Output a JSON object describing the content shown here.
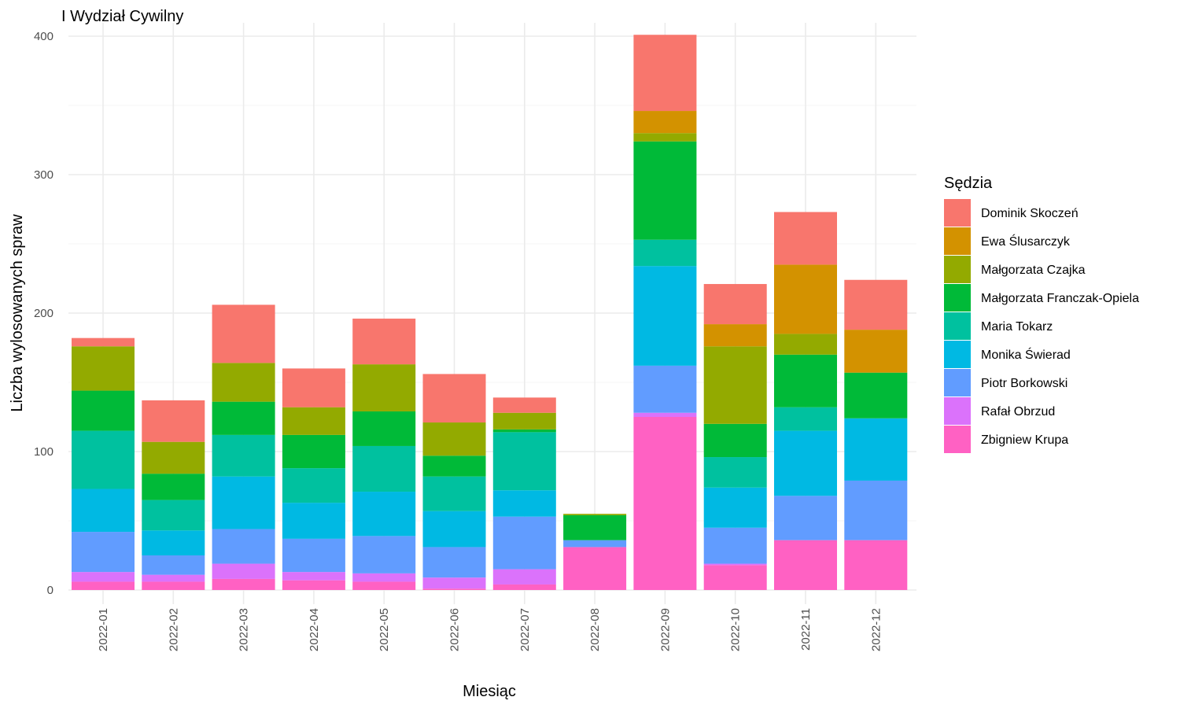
{
  "chart_data": {
    "type": "bar",
    "stacked": true,
    "title": "I Wydział Cywilny",
    "xlabel": "Miesiąc",
    "ylabel": "Liczba wylosowanych spraw",
    "ylim": [
      0,
      400
    ],
    "yticks": [
      0,
      100,
      200,
      300,
      400
    ],
    "grid": true,
    "legend_title": "Sędzia",
    "legend_position": "right",
    "categories": [
      "2022-01",
      "2022-02",
      "2022-03",
      "2022-04",
      "2022-05",
      "2022-06",
      "2022-07",
      "2022-08",
      "2022-09",
      "2022-10",
      "2022-11",
      "2022-12"
    ],
    "series": [
      {
        "name": "Dominik Skoczeń",
        "color": "#F8766D",
        "values": [
          6,
          30,
          42,
          28,
          33,
          35,
          11,
          0,
          55,
          29,
          38,
          36
        ]
      },
      {
        "name": "Ewa Ślusarczyk",
        "color": "#D39200",
        "values": [
          0,
          0,
          0,
          0,
          0,
          0,
          0,
          0,
          16,
          16,
          50,
          31
        ]
      },
      {
        "name": "Małgorzata Czajka",
        "color": "#93AA00",
        "values": [
          32,
          23,
          28,
          20,
          34,
          24,
          12,
          1,
          6,
          56,
          15,
          0
        ]
      },
      {
        "name": "Małgorzata Franczak-Opiela",
        "color": "#00BA38",
        "values": [
          29,
          19,
          24,
          24,
          25,
          15,
          2,
          18,
          71,
          24,
          38,
          33
        ]
      },
      {
        "name": "Maria Tokarz",
        "color": "#00C19F",
        "values": [
          42,
          22,
          30,
          25,
          33,
          25,
          42,
          0,
          19,
          22,
          17,
          0
        ]
      },
      {
        "name": "Monika Świerad",
        "color": "#00B9E3",
        "values": [
          31,
          18,
          38,
          26,
          32,
          26,
          19,
          0,
          72,
          29,
          47,
          45
        ]
      },
      {
        "name": "Piotr Borkowski",
        "color": "#619CFF",
        "values": [
          29,
          14,
          25,
          24,
          27,
          22,
          38,
          5,
          34,
          26,
          32,
          43
        ]
      },
      {
        "name": "Rafał Obrzud",
        "color": "#DB72FB",
        "values": [
          7,
          5,
          11,
          6,
          6,
          8,
          11,
          0,
          3,
          1,
          0,
          0
        ]
      },
      {
        "name": "Zbigniew Krupa",
        "color": "#FF61C3",
        "values": [
          6,
          6,
          8,
          7,
          6,
          1,
          4,
          31,
          125,
          18,
          36,
          36
        ]
      }
    ]
  }
}
